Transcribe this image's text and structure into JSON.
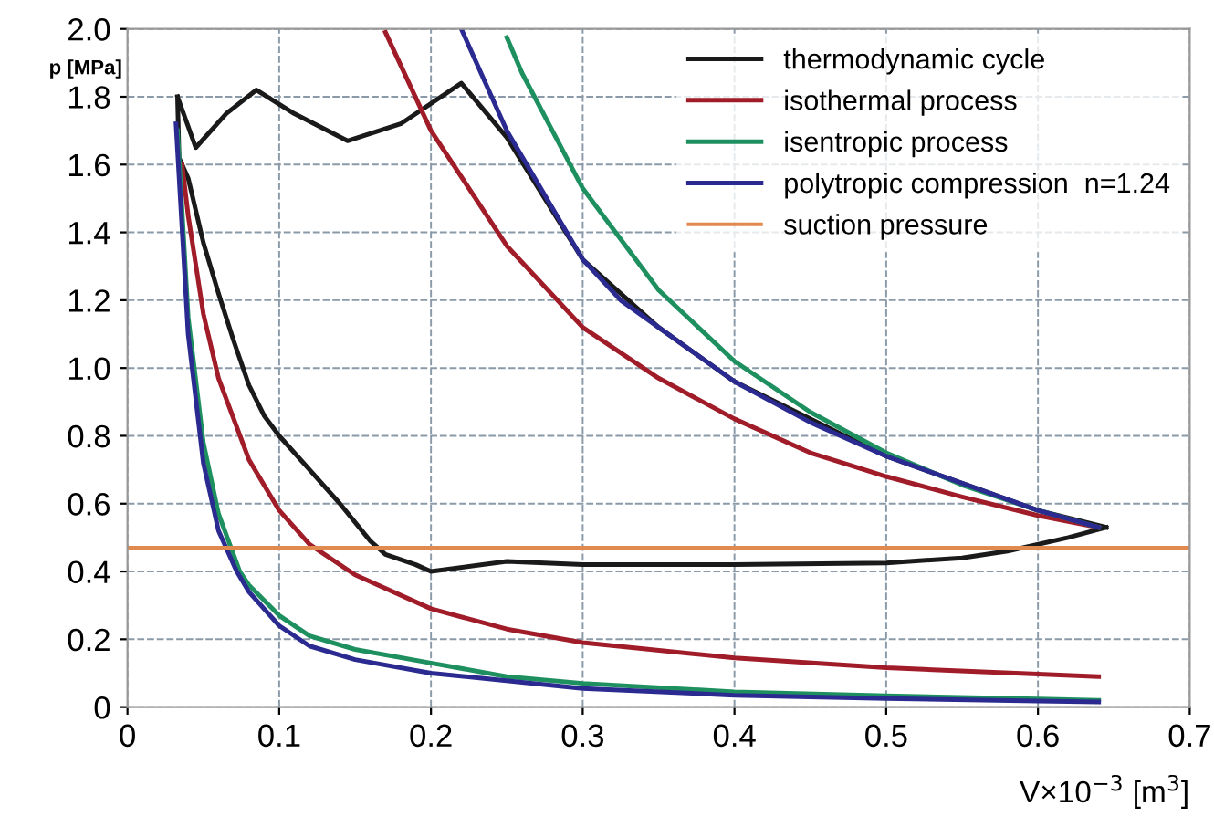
{
  "chart_data": {
    "type": "line",
    "xlabel": "V×10$^{−3}$ [m$^{3}$]",
    "ylabel": "p [MPa]",
    "xlim": [
      0,
      0.7
    ],
    "ylim": [
      0,
      2.0
    ],
    "xticks": [
      0,
      0.1,
      0.2,
      0.3,
      0.4,
      0.5,
      0.6,
      0.7
    ],
    "yticks": [
      0,
      0.2,
      0.4,
      0.6,
      0.8,
      {
        "value": 1.0,
        "label": "1.0"
      },
      1.2,
      1.4,
      1.6,
      1.8,
      {
        "value": 2.0,
        "label": "2.0"
      }
    ],
    "grid": true,
    "legend": "top right",
    "line_style": "solid",
    "marker": "none",
    "series": [
      {
        "name": "thermodynamic cycle",
        "color": "#1a1a1a",
        "x": [
          0.033,
          0.045,
          0.065,
          0.085,
          0.11,
          0.145,
          0.18,
          0.22,
          0.25,
          0.3,
          0.35,
          0.4,
          0.5,
          0.6,
          0.645,
          null,
          0.033,
          0.034,
          0.036,
          0.04,
          0.05,
          0.06,
          0.07,
          0.08,
          0.09,
          0.1,
          0.12,
          0.14,
          0.16,
          0.17,
          0.19,
          0.2,
          0.25,
          0.3,
          0.4,
          0.5,
          0.55,
          0.58,
          0.62,
          0.645
        ],
        "values": [
          1.8,
          1.65,
          1.75,
          1.82,
          1.75,
          1.67,
          1.72,
          1.84,
          1.68,
          1.32,
          1.12,
          0.96,
          0.74,
          0.58,
          0.53,
          null,
          1.8,
          1.62,
          1.6,
          1.56,
          1.37,
          1.22,
          1.08,
          0.95,
          0.86,
          0.8,
          0.7,
          0.6,
          0.49,
          0.45,
          0.42,
          0.4,
          0.43,
          0.42,
          0.42,
          0.425,
          0.44,
          0.46,
          0.5,
          0.53
        ]
      },
      {
        "name": "isothermal process",
        "color": "#a01c28",
        "x": [
          0.036,
          0.04,
          0.05,
          0.06,
          0.08,
          0.1,
          0.12,
          0.15,
          0.2,
          0.25,
          0.3,
          0.4,
          0.5,
          0.6,
          0.64,
          null,
          0.17,
          0.2,
          0.25,
          0.3,
          0.35,
          0.4,
          0.45,
          0.5,
          0.55,
          0.6,
          0.64
        ],
        "values": [
          1.6,
          1.45,
          1.16,
          0.97,
          0.73,
          0.58,
          0.48,
          0.39,
          0.29,
          0.23,
          0.19,
          0.145,
          0.116,
          0.097,
          0.09,
          null,
          1.99,
          1.7,
          1.36,
          1.12,
          0.97,
          0.85,
          0.75,
          0.68,
          0.62,
          0.565,
          0.53
        ]
      },
      {
        "name": "isentropic process",
        "color": "#1e9060",
        "x": [
          0.033,
          0.04,
          0.05,
          0.06,
          0.074,
          0.08,
          0.1,
          0.12,
          0.15,
          0.2,
          0.25,
          0.3,
          0.4,
          0.5,
          0.6,
          0.64,
          null,
          0.25,
          0.26,
          0.3,
          0.35,
          0.4,
          0.45,
          0.5,
          0.55,
          0.6,
          0.64
        ],
        "values": [
          1.7,
          1.15,
          0.78,
          0.57,
          0.4,
          0.36,
          0.27,
          0.21,
          0.17,
          0.13,
          0.09,
          0.07,
          0.045,
          0.033,
          0.024,
          0.02,
          null,
          1.975,
          1.87,
          1.53,
          1.23,
          1.02,
          0.87,
          0.75,
          0.655,
          0.58,
          0.53
        ]
      },
      {
        "name": "polytropic compression  n=1.24",
        "color": "#2a2a90",
        "x": [
          0.032,
          0.04,
          0.05,
          0.06,
          0.072,
          0.08,
          0.1,
          0.12,
          0.15,
          0.2,
          0.3,
          0.4,
          0.5,
          0.6,
          0.64,
          null,
          0.22,
          0.25,
          0.3,
          0.325,
          0.35,
          0.4,
          0.45,
          0.5,
          0.55,
          0.6,
          0.64
        ],
        "values": [
          1.72,
          1.1,
          0.72,
          0.52,
          0.4,
          0.34,
          0.24,
          0.18,
          0.14,
          0.1,
          0.055,
          0.035,
          0.025,
          0.018,
          0.015,
          null,
          2.0,
          1.7,
          1.32,
          1.2,
          1.12,
          0.96,
          0.84,
          0.74,
          0.66,
          0.58,
          0.53
        ]
      }
    ],
    "ref_lines": [
      {
        "axis": "y",
        "value": 0.47,
        "label": "suction pressure",
        "color": "#e08a50"
      }
    ]
  }
}
